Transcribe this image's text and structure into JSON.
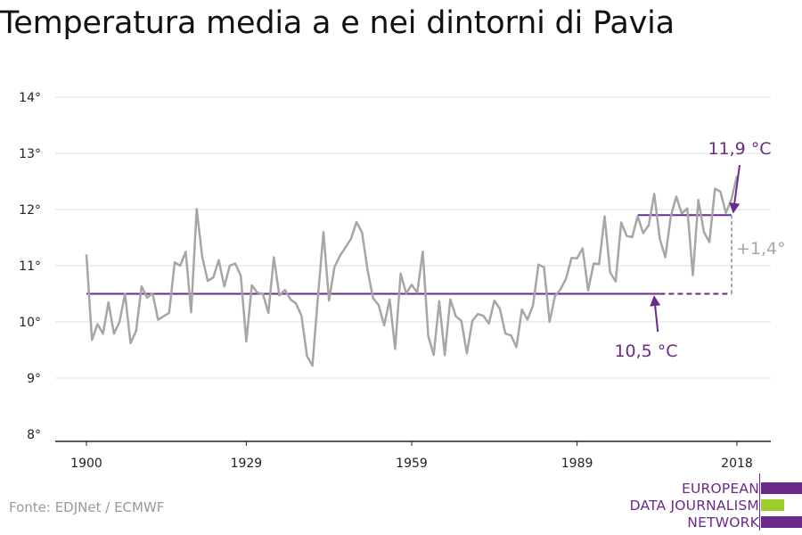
{
  "title": "Temperatura media a e nei dintorni di Pavia",
  "source": "Fonte: EDJNet / ECMWF",
  "logo": {
    "lines": [
      "EUROPEAN",
      "DATA JOURNALISM",
      "NETWORK"
    ]
  },
  "colors": {
    "series": "#a6a6a6",
    "accent": "#6b2a8a",
    "grid": "#dddddd",
    "logo_purple": "#6b2a8a",
    "logo_green": "#9ccd2a"
  },
  "chart_data": {
    "type": "line",
    "title": "Temperatura media a e nei dintorni di Pavia",
    "xlabel": "",
    "ylabel": "",
    "xlim": [
      1900,
      2018
    ],
    "ylim": [
      8,
      14
    ],
    "y_ticks": [
      8,
      9,
      10,
      11,
      12,
      13,
      14
    ],
    "y_tick_labels": [
      "8°",
      "9°",
      "10°",
      "11°",
      "12°",
      "13°",
      "14°"
    ],
    "x_ticks": [
      1900,
      1929,
      1959,
      1989,
      2018
    ],
    "x_tick_labels": [
      "1900",
      "1929",
      "1959",
      "1989",
      "2018"
    ],
    "grid": "horizontal",
    "x": [
      1900,
      1901,
      1902,
      1903,
      1904,
      1905,
      1906,
      1907,
      1908,
      1909,
      1910,
      1911,
      1912,
      1913,
      1914,
      1915,
      1916,
      1917,
      1918,
      1919,
      1920,
      1921,
      1922,
      1923,
      1924,
      1925,
      1926,
      1927,
      1928,
      1929,
      1930,
      1931,
      1932,
      1933,
      1934,
      1935,
      1936,
      1937,
      1938,
      1939,
      1940,
      1941,
      1942,
      1943,
      1944,
      1945,
      1946,
      1947,
      1948,
      1949,
      1950,
      1951,
      1952,
      1953,
      1954,
      1955,
      1956,
      1957,
      1958,
      1959,
      1960,
      1961,
      1962,
      1963,
      1964,
      1965,
      1966,
      1967,
      1968,
      1969,
      1970,
      1971,
      1972,
      1973,
      1974,
      1975,
      1976,
      1977,
      1978,
      1979,
      1980,
      1981,
      1982,
      1983,
      1984,
      1985,
      1986,
      1987,
      1988,
      1989,
      1990,
      1991,
      1992,
      1993,
      1994,
      1995,
      1996,
      1997,
      1998,
      1999,
      2000,
      2001,
      2002,
      2003,
      2004,
      2005,
      2006,
      2007,
      2008,
      2009,
      2010,
      2011,
      2012,
      2013,
      2014,
      2015,
      2016,
      2017,
      2018
    ],
    "series": [
      {
        "values": [
          11.2,
          9.68,
          9.96,
          9.79,
          10.35,
          9.79,
          10.0,
          10.5,
          9.62,
          9.84,
          10.63,
          10.43,
          10.51,
          10.04,
          10.1,
          10.16,
          11.06,
          11.0,
          11.25,
          10.17,
          12.01,
          11.16,
          10.73,
          10.79,
          11.1,
          10.63,
          11.0,
          11.04,
          10.82,
          9.65,
          10.65,
          10.52,
          10.5,
          10.16,
          11.15,
          10.47,
          10.57,
          10.4,
          10.33,
          10.11,
          9.39,
          9.22,
          10.45,
          11.6,
          10.38,
          10.98,
          11.18,
          11.33,
          11.48,
          11.78,
          11.59,
          10.92,
          10.42,
          10.3,
          9.94,
          10.4,
          9.52,
          10.86,
          10.51,
          10.66,
          10.52,
          11.25,
          9.75,
          9.41,
          10.37,
          9.41,
          10.4,
          10.1,
          10.02,
          9.44,
          10.02,
          10.14,
          10.11,
          9.97,
          10.38,
          10.23,
          9.79,
          9.76,
          9.55,
          10.22,
          10.04,
          10.29,
          11.02,
          10.97,
          10.0,
          10.46,
          10.58,
          10.77,
          11.14,
          11.13,
          11.31,
          10.56,
          11.04,
          11.03,
          11.88,
          10.88,
          10.72,
          11.77,
          11.53,
          11.51,
          11.88,
          11.58,
          11.72,
          12.28,
          11.48,
          11.15,
          11.88,
          12.23,
          11.93,
          12.02,
          10.83,
          12.17,
          11.6,
          11.42,
          12.37,
          12.32,
          11.94,
          12.18,
          12.6
        ]
      }
    ],
    "reference_lines": [
      {
        "label": "10,5 °C",
        "value": 10.5,
        "from": 1900,
        "to": 2018
      },
      {
        "label": "11,9 °C",
        "value": 11.9,
        "from": 2000,
        "to": 2018
      }
    ],
    "difference_label": "+1,4°"
  }
}
